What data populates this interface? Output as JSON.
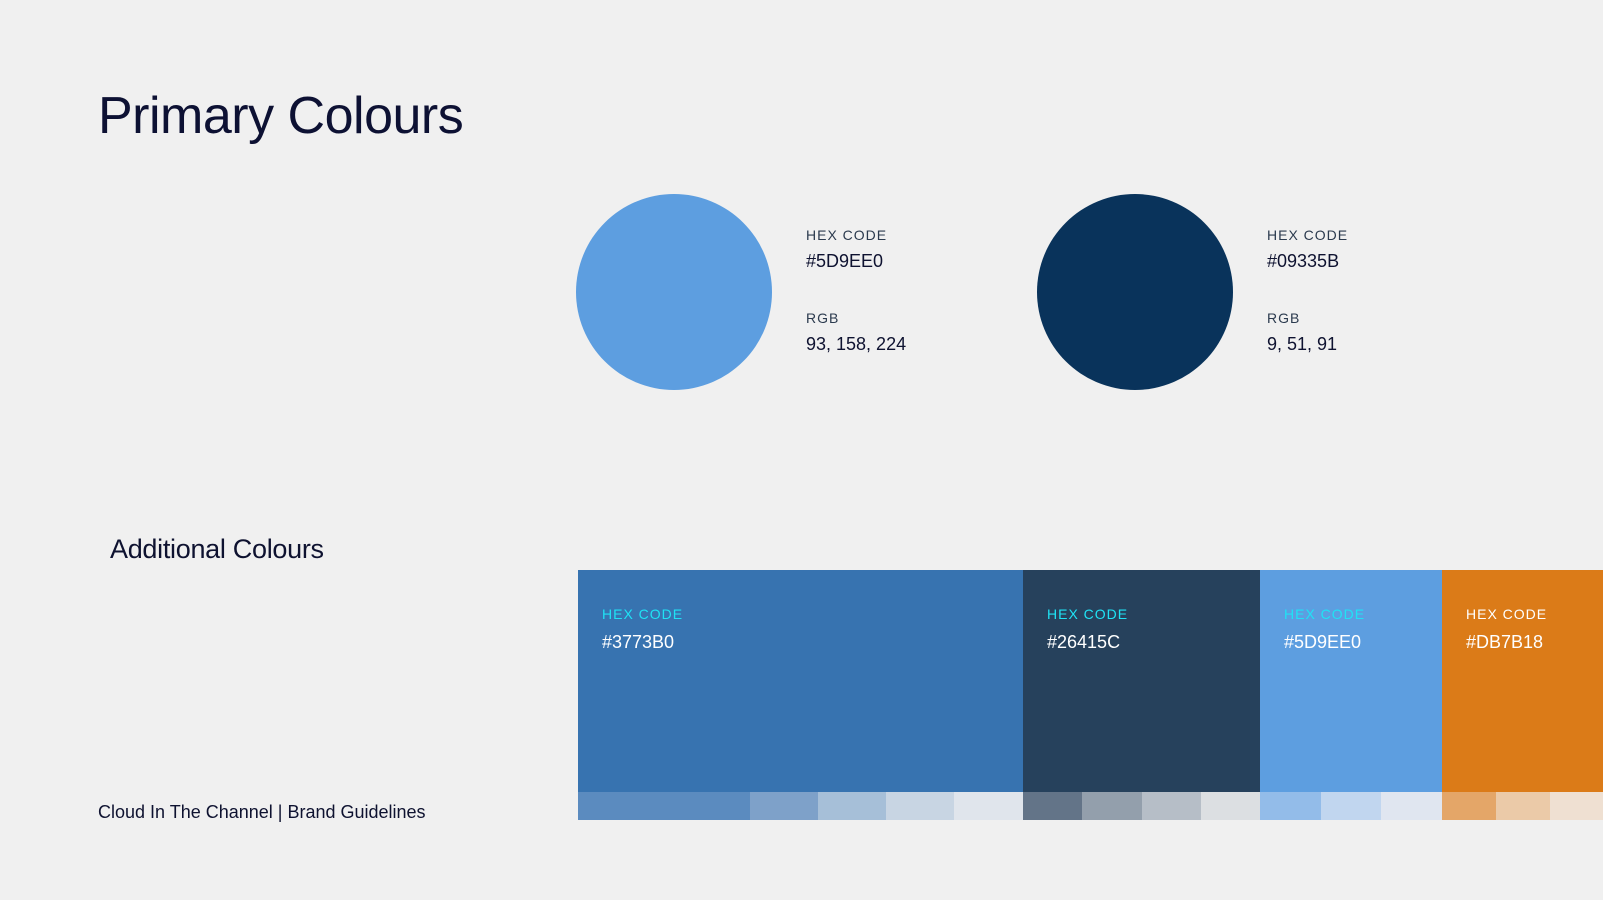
{
  "title": "Primary Colours",
  "primary": [
    {
      "hex_label": "HEX CODE",
      "hex": "#5D9EE0",
      "rgb_label": "RGB",
      "rgb": "93, 158, 224",
      "color": "#5D9EE0"
    },
    {
      "hex_label": "HEX CODE",
      "hex": "#09335B",
      "rgb_label": "RGB",
      "rgb": "9, 51, 91",
      "color": "#09335B"
    }
  ],
  "additional_title": "Additional Colours",
  "additional": [
    {
      "label": "HEX CODE",
      "hex": "#3773B0",
      "color": "#3773B0",
      "label_color": "#1fe3f5",
      "tints": [
        "#5b8bbf",
        "#5b8bbf",
        "#7ea1c9",
        "#a6bfd8",
        "#c8d5e3",
        "#e0e5ec"
      ]
    },
    {
      "label": "HEX CODE",
      "hex": "#26415C",
      "color": "#26415C",
      "label_color": "#1fe3f5",
      "tints": [
        "#637488",
        "#939fac",
        "#b6bec7",
        "#dcdfe2"
      ]
    },
    {
      "label": "HEX CODE",
      "hex": "#5D9EE0",
      "color": "#5D9EE0",
      "label_color": "#1fe3f5",
      "tints": [
        "#93bce9",
        "#c1d6ef",
        "#e0e6f0"
      ]
    },
    {
      "label": "HEX CODE",
      "hex": "#DB7B18",
      "color": "#DB7B18",
      "label_color": "#ffffff",
      "tints": [
        "#e4a668",
        "#ebcaa8",
        "#efe0d2"
      ]
    }
  ],
  "footer": "Cloud In The Channel | Brand Guidelines"
}
